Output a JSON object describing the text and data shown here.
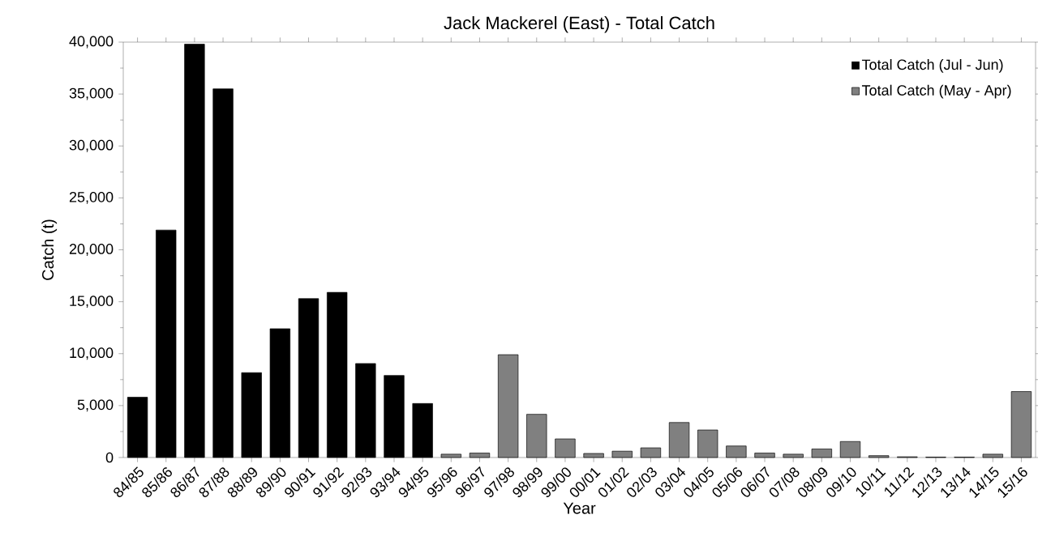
{
  "chart_data": {
    "type": "bar",
    "title": "Jack Mackerel (East) - Total Catch",
    "xlabel": "Year",
    "ylabel": "Catch (t)",
    "categories": [
      "84/85",
      "85/86",
      "86/87",
      "87/88",
      "88/89",
      "89/90",
      "90/91",
      "91/92",
      "92/93",
      "93/94",
      "94/95",
      "95/96",
      "96/97",
      "97/98",
      "98/99",
      "99/00",
      "00/01",
      "01/02",
      "02/03",
      "03/04",
      "04/05",
      "05/06",
      "06/07",
      "07/08",
      "08/09",
      "09/10",
      "10/11",
      "11/12",
      "12/13",
      "13/14",
      "14/15",
      "15/16"
    ],
    "series": [
      {
        "name": "Total Catch (Jul - Jun)",
        "color": "#000000",
        "values": [
          5800,
          21900,
          39800,
          35500,
          8170,
          12400,
          15300,
          15900,
          9050,
          7900,
          5200,
          null,
          null,
          null,
          null,
          null,
          null,
          null,
          null,
          null,
          null,
          null,
          null,
          null,
          null,
          null,
          null,
          null,
          null,
          null,
          null,
          null
        ]
      },
      {
        "name": "Total Catch (May - Apr)",
        "color": "#808080",
        "values": [
          null,
          null,
          null,
          null,
          null,
          null,
          null,
          null,
          null,
          null,
          null,
          320,
          430,
          9900,
          4160,
          1790,
          390,
          610,
          930,
          3370,
          2650,
          1110,
          430,
          320,
          820,
          1540,
          180,
          70,
          40,
          40,
          320,
          6350
        ]
      }
    ],
    "ylim": [
      0,
      40000
    ],
    "yticks": [
      {
        "value": 0,
        "label": "0"
      },
      {
        "value": 5000,
        "label": "5,000"
      },
      {
        "value": 10000,
        "label": "10,000"
      },
      {
        "value": 15000,
        "label": "15,000"
      },
      {
        "value": 20000,
        "label": "20,000"
      },
      {
        "value": 25000,
        "label": "25,000"
      },
      {
        "value": 30000,
        "label": "30,000"
      },
      {
        "value": 35000,
        "label": "35,000"
      },
      {
        "value": 40000,
        "label": "40,000"
      }
    ],
    "legend": "top right",
    "grid": false
  }
}
